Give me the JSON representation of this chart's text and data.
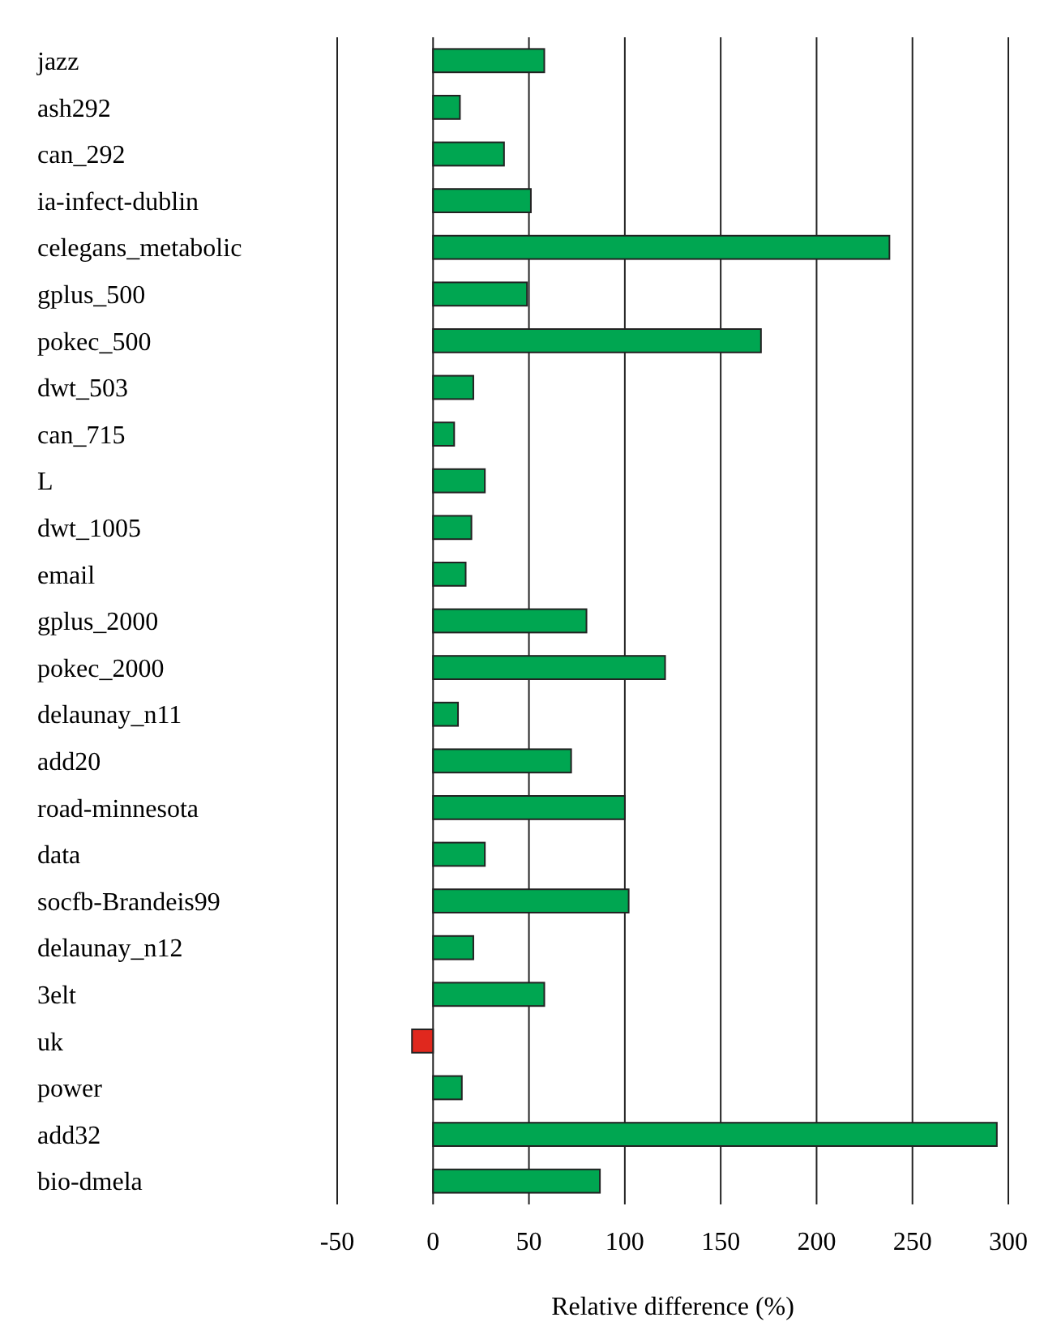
{
  "chart_data": {
    "type": "bar",
    "orientation": "horizontal",
    "xlabel": "Relative difference (%)",
    "categories": [
      "jazz",
      "ash292",
      "can_292",
      "ia-infect-dublin",
      "celegans_metabolic",
      "gplus_500",
      "pokec_500",
      "dwt_503",
      "can_715",
      "L",
      "dwt_1005",
      "email",
      "gplus_2000",
      "pokec_2000",
      "delaunay_n11",
      "add20",
      "road-minnesota",
      "data",
      "socfb-Brandeis99",
      "delaunay_n12",
      "3elt",
      "uk",
      "power",
      "add32",
      "bio-dmela"
    ],
    "values": [
      58,
      14,
      37,
      51,
      238,
      49,
      171,
      21,
      11,
      27,
      20,
      17,
      80,
      121,
      13,
      72,
      100,
      27,
      102,
      21,
      58,
      -11,
      15,
      294,
      87
    ],
    "colors": [
      "#00a651",
      "#00a651",
      "#00a651",
      "#00a651",
      "#00a651",
      "#00a651",
      "#00a651",
      "#00a651",
      "#00a651",
      "#00a651",
      "#00a651",
      "#00a651",
      "#00a651",
      "#00a651",
      "#00a651",
      "#00a651",
      "#00a651",
      "#00a651",
      "#00a651",
      "#00a651",
      "#00a651",
      "#e0281e",
      "#00a651",
      "#00a651",
      "#00a651"
    ],
    "xlim": [
      -50,
      300
    ],
    "xticks": [
      -50,
      0,
      50,
      100,
      150,
      200,
      250,
      300
    ],
    "grid": "x"
  }
}
